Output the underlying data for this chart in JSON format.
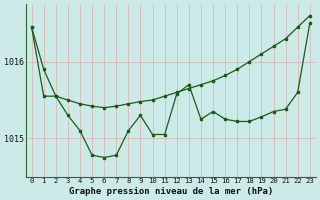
{
  "title": "Graphe pression niveau de la mer (hPa)",
  "background_color": "#cceae8",
  "line_color": "#1a5c1a",
  "x_labels": [
    "0",
    "1",
    "2",
    "3",
    "4",
    "5",
    "6",
    "7",
    "8",
    "9",
    "10",
    "11",
    "12",
    "13",
    "14",
    "15",
    "16",
    "17",
    "18",
    "19",
    "20",
    "21",
    "22",
    "23"
  ],
  "series1_diagonal": [
    1016.45,
    1015.9,
    1015.55,
    1015.5,
    1015.45,
    1015.42,
    1015.4,
    1015.42,
    1015.45,
    1015.48,
    1015.5,
    1015.55,
    1015.6,
    1015.65,
    1015.7,
    1015.75,
    1015.82,
    1015.9,
    1016.0,
    1016.1,
    1016.2,
    1016.3,
    1016.45,
    1016.6
  ],
  "series2_ushape": [
    1016.45,
    1015.55,
    1015.55,
    1015.3,
    1015.1,
    1014.78,
    1014.75,
    1014.78,
    1015.1,
    1015.3,
    1015.05,
    1015.05,
    1015.58,
    1015.7,
    1015.25,
    1015.35,
    1015.25,
    1015.22,
    1015.22,
    1015.28,
    1015.35,
    1015.38,
    1015.6,
    1016.5
  ],
  "ylim_min": 1014.5,
  "ylim_max": 1016.75,
  "ytick_positions": [
    1015.0,
    1016.0
  ],
  "ytick_labels": [
    "1015",
    "1016"
  ],
  "grid_x_color": "#dbb8b8",
  "grid_y_color": "#dbb8b8"
}
